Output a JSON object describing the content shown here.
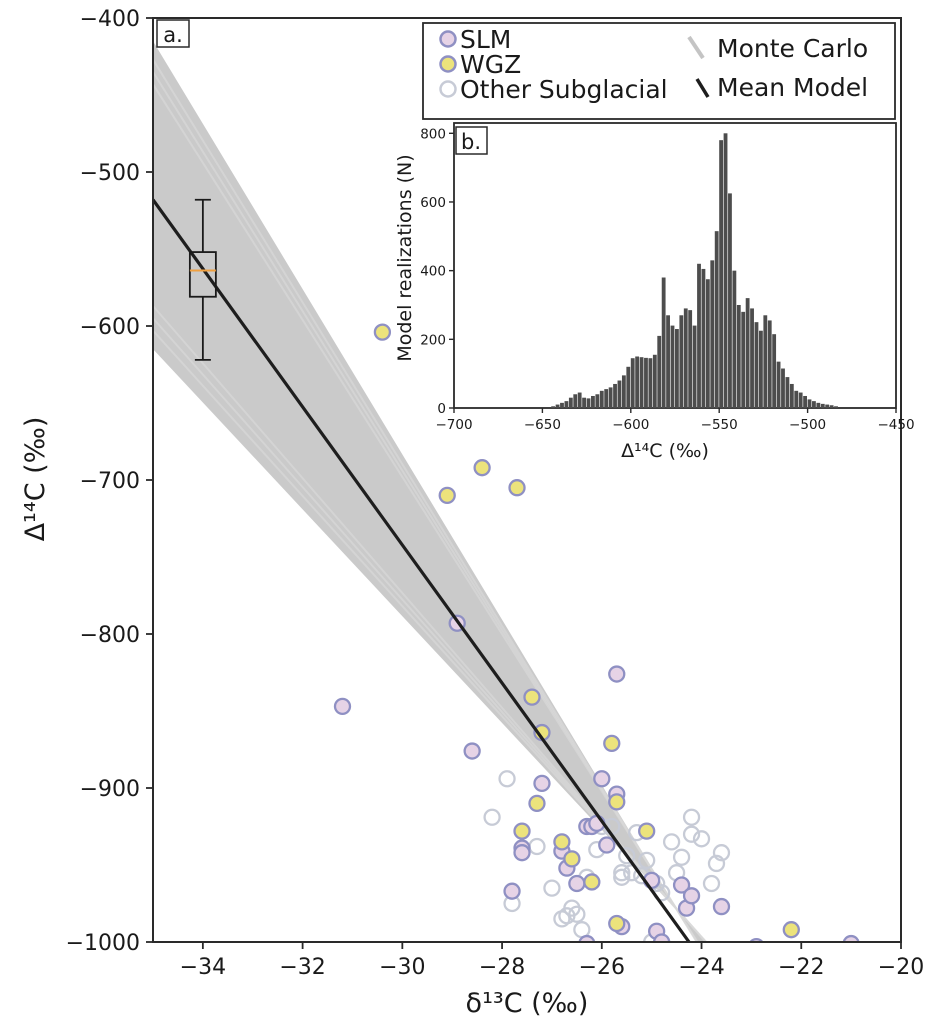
{
  "chart_data": [
    {
      "type": "scatter",
      "panel_label": "a.",
      "xlabel": "δ¹³C (‰)",
      "ylabel": "Δ¹⁴C (‰)",
      "xlim": [
        -35,
        -20
      ],
      "ylim": [
        -1000,
        -400
      ],
      "xticks": [
        -34,
        -32,
        -30,
        -28,
        -26,
        -24,
        -22,
        -20
      ],
      "yticks": [
        -1000,
        -900,
        -800,
        -700,
        -600,
        -500,
        -400
      ],
      "grid": false,
      "legend_position": "top-right",
      "legend": {
        "slm": "SLM",
        "wgz": "WGZ",
        "other": "Other Subglacial",
        "monte_carlo": "Monte Carlo",
        "mean_model": "Mean Model"
      },
      "colors": {
        "slm_fill": "#e6d3e6",
        "slm_edge": "#8f90c3",
        "wgz_fill": "#ece37c",
        "wgz_edge": "#8f90c3",
        "other_edge": "#c7cbd6",
        "band": "#c4c4c4",
        "mean_line": "#1e1e1e",
        "median": "#f0a040"
      },
      "mean_model": {
        "x": [
          -35,
          -24.25
        ],
        "y": [
          -518,
          -1000
        ]
      },
      "monte_carlo_band": {
        "upper": {
          "x": [
            -35,
            -24.1
          ],
          "y": [
            -415,
            -1000
          ]
        },
        "lower": {
          "x": [
            -35,
            -23.9
          ],
          "y": [
            -615,
            -1000
          ]
        }
      },
      "intercept_box": {
        "x": -34,
        "median": -564,
        "q1": -581,
        "q3": -552,
        "whisker_low": -622,
        "whisker_high": -518
      },
      "series": [
        {
          "name": "SLM",
          "points": [
            [
              -31.2,
              -847
            ],
            [
              -28.9,
              -793
            ],
            [
              -28.6,
              -876
            ],
            [
              -27.2,
              -897
            ],
            [
              -27.6,
              -939
            ],
            [
              -27.6,
              -942
            ],
            [
              -27.8,
              -967
            ],
            [
              -26.8,
              -941
            ],
            [
              -26.7,
              -952
            ],
            [
              -26.5,
              -962
            ],
            [
              -26.3,
              -1001
            ],
            [
              -26.3,
              -925
            ],
            [
              -26.2,
              -925
            ],
            [
              -26.1,
              -923
            ],
            [
              -26.0,
              -894
            ],
            [
              -25.9,
              -937
            ],
            [
              -25.7,
              -826
            ],
            [
              -25.7,
              -904
            ],
            [
              -25.6,
              -990
            ],
            [
              -25.0,
              -960
            ],
            [
              -24.9,
              -993
            ],
            [
              -24.8,
              -1000
            ],
            [
              -24.4,
              -963
            ],
            [
              -24.3,
              -978
            ],
            [
              -24.2,
              -970
            ],
            [
              -23.6,
              -977
            ],
            [
              -22.9,
              -1003
            ],
            [
              -21.0,
              -1001
            ]
          ]
        },
        {
          "name": "WGZ",
          "points": [
            [
              -30.4,
              -604
            ],
            [
              -29.1,
              -710
            ],
            [
              -28.4,
              -692
            ],
            [
              -27.7,
              -705
            ],
            [
              -27.4,
              -841
            ],
            [
              -27.2,
              -864
            ],
            [
              -27.3,
              -910
            ],
            [
              -27.6,
              -928
            ],
            [
              -26.8,
              -935
            ],
            [
              -26.6,
              -946
            ],
            [
              -26.2,
              -961
            ],
            [
              -25.8,
              -871
            ],
            [
              -25.7,
              -909
            ],
            [
              -25.7,
              -988
            ],
            [
              -25.1,
              -928
            ],
            [
              -22.2,
              -992
            ]
          ]
        },
        {
          "name": "Other Subglacial",
          "points": [
            [
              -27.9,
              -894
            ],
            [
              -28.2,
              -919
            ],
            [
              -27.8,
              -975
            ],
            [
              -27.3,
              -938
            ],
            [
              -27.0,
              -965
            ],
            [
              -26.8,
              -985
            ],
            [
              -26.7,
              -983
            ],
            [
              -26.6,
              -978
            ],
            [
              -26.5,
              -982
            ],
            [
              -26.3,
              -958
            ],
            [
              -26.1,
              -940
            ],
            [
              -26.0,
              -925
            ],
            [
              -25.8,
              -925
            ],
            [
              -25.6,
              -958
            ],
            [
              -25.5,
              -944
            ],
            [
              -25.4,
              -955
            ],
            [
              -25.3,
              -929
            ],
            [
              -25.2,
              -957
            ],
            [
              -25.1,
              -947
            ],
            [
              -24.9,
              -962
            ],
            [
              -24.8,
              -968
            ],
            [
              -24.6,
              -935
            ],
            [
              -24.5,
              -955
            ],
            [
              -24.4,
              -945
            ],
            [
              -24.2,
              -919
            ],
            [
              -24.2,
              -930
            ],
            [
              -24.0,
              -933
            ],
            [
              -23.8,
              -962
            ],
            [
              -23.7,
              -949
            ],
            [
              -23.6,
              -942
            ],
            [
              -25.6,
              -955
            ],
            [
              -26.4,
              -992
            ],
            [
              -25.0,
              -1000
            ]
          ]
        }
      ]
    },
    {
      "type": "bar",
      "panel_label": "b.",
      "xlabel": "Δ¹⁴C (‰)",
      "ylabel": "Model realizations (N)",
      "xlim": [
        -700,
        -450
      ],
      "ylim": [
        0,
        830
      ],
      "xticks": [
        -700,
        -650,
        -600,
        -550,
        -500,
        -450
      ],
      "yticks": [
        0,
        200,
        400,
        600,
        800
      ],
      "bin_start": -645,
      "bin_width": 2.5,
      "values": [
        5,
        10,
        15,
        20,
        30,
        40,
        45,
        30,
        28,
        35,
        40,
        50,
        55,
        60,
        70,
        80,
        95,
        120,
        145,
        150,
        148,
        146,
        145,
        155,
        210,
        380,
        270,
        240,
        230,
        270,
        290,
        285,
        240,
        420,
        405,
        375,
        430,
        515,
        780,
        800,
        625,
        400,
        300,
        280,
        320,
        290,
        250,
        225,
        270,
        255,
        215,
        135,
        115,
        90,
        70,
        50,
        45,
        35,
        25,
        20,
        15,
        12,
        10,
        8,
        5
      ]
    }
  ]
}
